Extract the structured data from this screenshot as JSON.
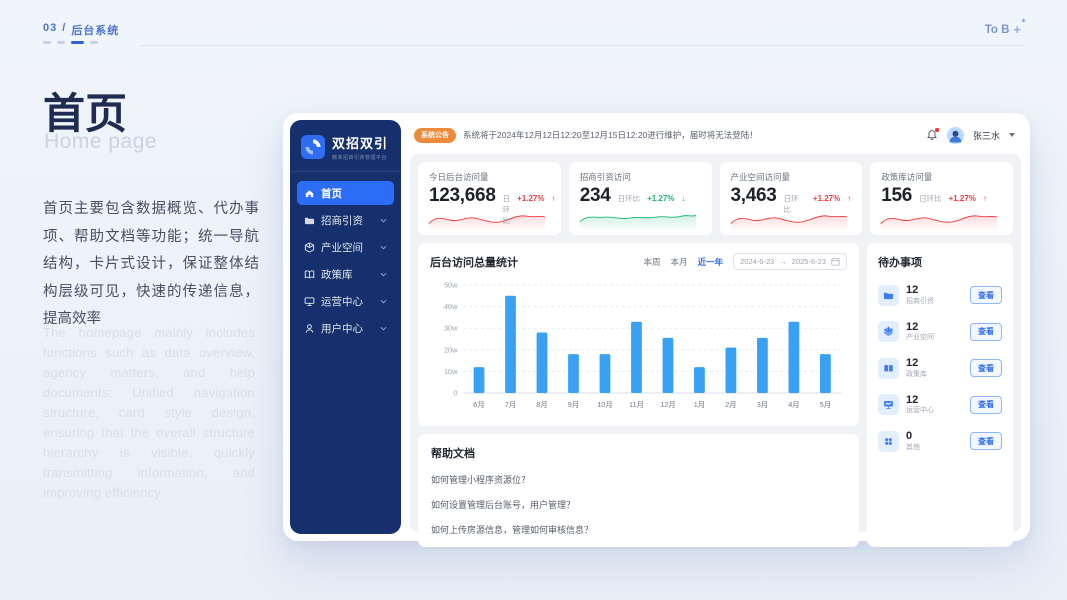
{
  "page": {
    "breadcrumb": {
      "num": "03",
      "divider": "/",
      "label": "后台系统"
    },
    "corner": {
      "label": "To B",
      "plus": "+"
    },
    "title": "首页",
    "subtitle": "Home page",
    "desc_zh": "首页主要包含数据概览、代办事项、帮助文档等功能；统一导航结构，卡片式设计，保证整体结构层级可见，快速的传递信息，提高效率",
    "desc_en": "The homepage mainly includes functions such as data overview, agency matters, and help documents; Unified navigation structure, card style design, ensuring that the overall structure hierarchy is visible, quickly transmitting information, and improving efficiency"
  },
  "app": {
    "brand": {
      "name": "双招双引",
      "tagline": "精准招商引资管理平台"
    },
    "nav": [
      {
        "label": "首页",
        "active": true
      },
      {
        "label": "招商引资",
        "active": false
      },
      {
        "label": "产业空间",
        "active": false
      },
      {
        "label": "政策库",
        "active": false
      },
      {
        "label": "运营中心",
        "active": false
      },
      {
        "label": "用户中心",
        "active": false
      }
    ],
    "header": {
      "badge": "系统公告",
      "notice": "系统将于2024年12月12日12:20至12月15日12:20进行维护，届时将无法登陆！",
      "user": "张三水"
    },
    "stats": [
      {
        "label": "今日后台访问量",
        "value": "123,668",
        "compare": "日环比",
        "delta": "+1.27%",
        "arrow": "↑",
        "color": "red"
      },
      {
        "label": "招商引资访问",
        "value": "234",
        "compare": "日环比",
        "delta": "+1.27%",
        "arrow": "↓",
        "color": "green"
      },
      {
        "label": "产业空间访问量",
        "value": "3,463",
        "compare": "日环比",
        "delta": "+1.27%",
        "arrow": "↑",
        "color": "red"
      },
      {
        "label": "政策库访问量",
        "value": "156",
        "compare": "日环比",
        "delta": "+1.27%",
        "arrow": "↑",
        "color": "red"
      }
    ],
    "chart_card": {
      "title": "后台访问总量统计",
      "tabs": [
        "本周",
        "本月",
        "近一年"
      ],
      "active_tab": "近一年",
      "date_start": "2024-6-23",
      "date_arrow": "→",
      "date_end": "2025-6-23"
    },
    "todo": {
      "title": "待办事项",
      "action": "查看",
      "items": [
        {
          "count": "12",
          "label": "招商引资",
          "icon": "folder-icon"
        },
        {
          "count": "12",
          "label": "产业空间",
          "icon": "cube-icon"
        },
        {
          "count": "12",
          "label": "政策库",
          "icon": "book-icon"
        },
        {
          "count": "12",
          "label": "运营中心",
          "icon": "monitor-icon"
        },
        {
          "count": "0",
          "label": "其他",
          "icon": "grid-dots-icon"
        }
      ]
    },
    "help": {
      "title": "帮助文档",
      "items": [
        "如何管理小程序资源位？",
        "如何设置管理后台账号，用户管理？",
        "如何上传房源信息，管理如何审核信息？"
      ]
    }
  },
  "chart_data": {
    "type": "bar",
    "title": "后台访问总量统计",
    "categories": [
      "6月",
      "7月",
      "8月",
      "9月",
      "10月",
      "11月",
      "12月",
      "1月",
      "2月",
      "3月",
      "4月",
      "5月"
    ],
    "values": [
      12,
      45,
      28,
      18,
      18,
      33,
      25.5,
      12,
      21,
      25.5,
      33,
      18
    ],
    "unit": "w (万)",
    "ylim": [
      0,
      50
    ],
    "ytick_values": [
      0,
      10,
      20,
      30,
      40,
      50
    ],
    "ytick_labels": [
      "0",
      "10w",
      "20w",
      "30w",
      "40w",
      "50w"
    ],
    "bar_color": "#38a1f3",
    "grid": "dashed horizontal",
    "legend": "none"
  },
  "colors": {
    "sidebar": "#16306e",
    "primary": "#2d6cf5",
    "bar": "#38a1f3",
    "red": "#f0383e",
    "green": "#18b96d",
    "badge_orange": "#ee8a3c",
    "page_bg": "#edf2f9"
  }
}
